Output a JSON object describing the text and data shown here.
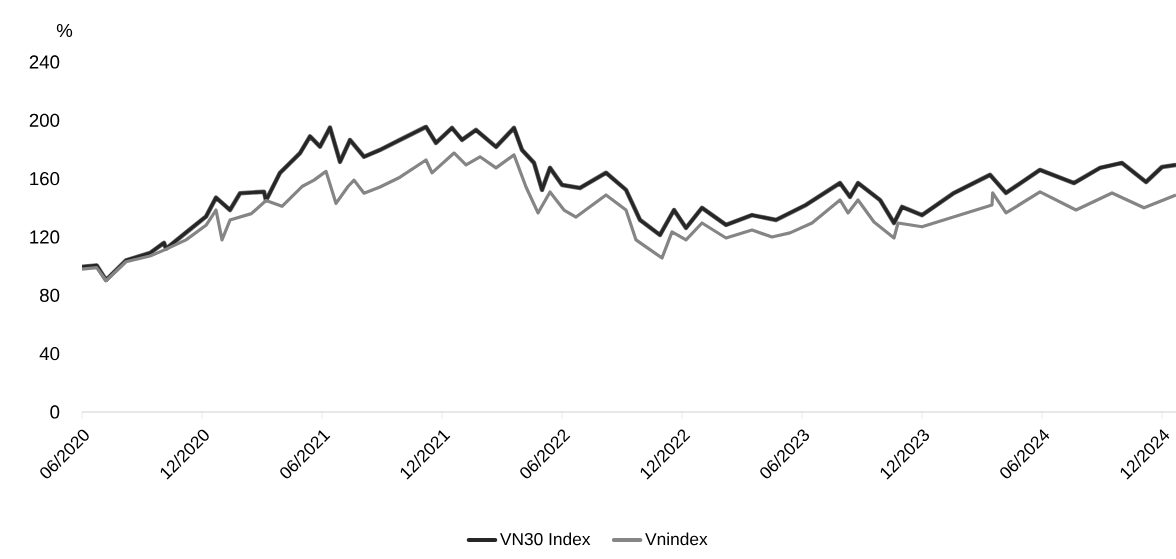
{
  "chart_data": {
    "type": "line",
    "ylabel": "%",
    "xlim": [
      "2020-06-01",
      "2024-12-22"
    ],
    "xticks": [
      {
        "value": "2020-06-01",
        "label": "06/2020"
      },
      {
        "value": "2020-12-01",
        "label": "12/2020"
      },
      {
        "value": "2021-06-01",
        "label": "06/2021"
      },
      {
        "value": "2021-12-01",
        "label": "12/2021"
      },
      {
        "value": "2022-06-01",
        "label": "06/2022"
      },
      {
        "value": "2022-12-01",
        "label": "12/2022"
      },
      {
        "value": "2023-06-01",
        "label": "06/2023"
      },
      {
        "value": "2023-12-01",
        "label": "12/2023"
      },
      {
        "value": "2024-06-01",
        "label": "06/2024"
      },
      {
        "value": "2024-12-01",
        "label": "12/2024"
      }
    ],
    "ylim": [
      0,
      240
    ],
    "yticks": [
      0,
      40,
      80,
      120,
      160,
      200,
      240
    ],
    "legend": "bottom",
    "series": [
      {
        "color": "#6e6e6e",
        "x": [
          "2020-06-01",
          "2020-06-23",
          "2020-07-07",
          "2020-08-07",
          "2020-09-13",
          "2020-10-04",
          "2020-10-07",
          "2020-11-07",
          "2020-12-07",
          "2020-12-22",
          "2021-01-13",
          "2021-01-28",
          "2021-03-04",
          "2021-03-07",
          "2021-03-28",
          "2021-04-28",
          "2021-05-13",
          "2021-05-28",
          "2021-06-13",
          "2021-06-28",
          "2021-07-13",
          "2021-08-04",
          "2021-08-28",
          "2021-09-28",
          "2021-11-07",
          "2021-11-22",
          "2021-12-16",
          "2022-01-01",
          "2022-01-22",
          "2022-02-22",
          "2022-03-19",
          "2022-04-01",
          "2022-04-19",
          "2022-05-01",
          "2022-05-13",
          "2022-06-01",
          "2022-06-28",
          "2022-08-07",
          "2022-09-07",
          "2022-09-28",
          "2022-10-28",
          "2022-11-19",
          "2022-12-07",
          "2023-01-01",
          "2023-02-07",
          "2023-03-16",
          "2023-04-22",
          "2023-06-07",
          "2023-07-28",
          "2023-08-13",
          "2023-08-25",
          "2023-09-28",
          "2023-10-19",
          "2023-11-01",
          "2023-12-01",
          "2024-01-19",
          "2024-03-13",
          "2024-04-07",
          "2024-05-28",
          "2024-07-19",
          "2024-08-28",
          "2024-10-01",
          "2024-11-07",
          "2024-12-01",
          "2024-12-22"
        ],
        "values": [
          99.5,
          100.5,
          90.5,
          104,
          109,
          116,
          112,
          123,
          134,
          147,
          138.5,
          150,
          151,
          145,
          164,
          177.5,
          189,
          182,
          195,
          171.5,
          186.5,
          175,
          179.7,
          186.6,
          195.5,
          184.5,
          194.8,
          186.6,
          193.4,
          181.8,
          194.8,
          179.7,
          170.8,
          152.3,
          167.4,
          155.7,
          153.6,
          164,
          152.3,
          131.7,
          121.4,
          138.5,
          126.2,
          140,
          128.3,
          135,
          131.7,
          142,
          157,
          147.5,
          157,
          145.4,
          129.6,
          140.6,
          135,
          150.2,
          162.6,
          150.2,
          166,
          157,
          167.4,
          170.8,
          157.7,
          168,
          169.4
        ]
      },
      {
        "name": "VN30 Index",
        "color": "#262626",
        "x": [
          "2020-06-01",
          "2020-06-23",
          "2020-07-07",
          "2020-08-07",
          "2020-09-13",
          "2020-10-04",
          "2020-10-07",
          "2020-11-07",
          "2020-12-07",
          "2020-12-22",
          "2021-01-13",
          "2021-01-28",
          "2021-03-04",
          "2021-03-07",
          "2021-03-28",
          "2021-04-28",
          "2021-05-13",
          "2021-05-28",
          "2021-06-13",
          "2021-06-28",
          "2021-07-13",
          "2021-08-04",
          "2021-08-28",
          "2021-09-28",
          "2021-11-07",
          "2021-11-22",
          "2021-12-16",
          "2022-01-01",
          "2022-01-22",
          "2022-02-22",
          "2022-03-19",
          "2022-04-01",
          "2022-04-19",
          "2022-05-01",
          "2022-05-13",
          "2022-06-01",
          "2022-06-28",
          "2022-08-07",
          "2022-09-07",
          "2022-09-28",
          "2022-10-28",
          "2022-11-19",
          "2022-12-07",
          "2023-01-01",
          "2023-02-07",
          "2023-03-16",
          "2023-04-22",
          "2023-06-07",
          "2023-07-28",
          "2023-08-13",
          "2023-08-25",
          "2023-09-28",
          "2023-10-19",
          "2023-11-01",
          "2023-12-01",
          "2024-01-19",
          "2024-03-13",
          "2024-04-07",
          "2024-05-28",
          "2024-07-19",
          "2024-08-28",
          "2024-10-01",
          "2024-11-07",
          "2024-12-01",
          "2024-12-22"
        ],
        "values": [
          99.5,
          100.5,
          90.5,
          104,
          109,
          116,
          112,
          123,
          134,
          147,
          138.5,
          150,
          151,
          145,
          164,
          177.5,
          189,
          182,
          195,
          171.5,
          186.5,
          175,
          179.7,
          186.6,
          195.5,
          184.5,
          194.8,
          186.6,
          193.4,
          181.8,
          194.8,
          179.7,
          170.8,
          152.3,
          167.4,
          155.7,
          153.6,
          164,
          152.3,
          131.7,
          121.4,
          138.5,
          126.2,
          140,
          128.3,
          135,
          131.7,
          142,
          157,
          147.5,
          157,
          145.4,
          129.6,
          140.6,
          135,
          150.2,
          162.6,
          150.2,
          166,
          157,
          167.4,
          170.8,
          157.7,
          168,
          169.4
        ]
      },
      {
        "name": "Vnindex",
        "color": "#858585",
        "x": [
          "2020-06-01",
          "2020-06-23",
          "2020-07-07",
          "2020-08-07",
          "2020-09-13",
          "2020-10-04",
          "2020-11-07",
          "2020-12-07",
          "2020-12-22",
          "2021-01-01",
          "2021-01-13",
          "2021-02-15",
          "2021-03-07",
          "2021-04-01",
          "2021-05-01",
          "2021-05-19",
          "2021-06-07",
          "2021-06-22",
          "2021-07-10",
          "2021-07-19",
          "2021-08-04",
          "2021-08-28",
          "2021-09-28",
          "2021-11-07",
          "2021-11-16",
          "2021-12-19",
          "2022-01-07",
          "2022-01-28",
          "2022-02-22",
          "2022-03-19",
          "2022-04-07",
          "2022-04-25",
          "2022-05-13",
          "2022-06-04",
          "2022-06-22",
          "2022-08-07",
          "2022-09-07",
          "2022-09-22",
          "2022-10-07",
          "2022-11-01",
          "2022-11-16",
          "2022-12-07",
          "2023-01-01",
          "2023-02-07",
          "2023-03-16",
          "2023-04-16",
          "2023-05-13",
          "2023-06-16",
          "2023-07-28",
          "2023-08-10",
          "2023-08-25",
          "2023-09-19",
          "2023-10-19",
          "2023-10-25",
          "2023-12-01",
          "2024-03-16",
          "2024-03-17",
          "2024-04-07",
          "2024-05-28",
          "2024-07-22",
          "2024-09-16",
          "2024-11-04",
          "2024-12-22"
        ],
        "values": [
          98,
          99,
          90,
          103,
          107,
          111,
          118,
          128,
          138.5,
          118,
          131.6,
          136,
          145,
          141,
          154.6,
          159,
          165,
          143,
          154.6,
          159,
          150,
          154.3,
          161,
          172.8,
          164,
          177.6,
          169.4,
          175,
          167.4,
          176.3,
          154.3,
          136.5,
          150.9,
          138.5,
          133.7,
          148.8,
          138.5,
          118,
          113.2,
          105.6,
          123.5,
          118,
          129.6,
          119.3,
          124.8,
          120,
          122.8,
          129.6,
          145.4,
          136.5,
          145.4,
          130.3,
          119.3,
          129.6,
          127,
          142,
          150.2,
          136.5,
          150.9,
          138.5,
          150.2,
          140,
          148.8
        ]
      }
    ]
  }
}
